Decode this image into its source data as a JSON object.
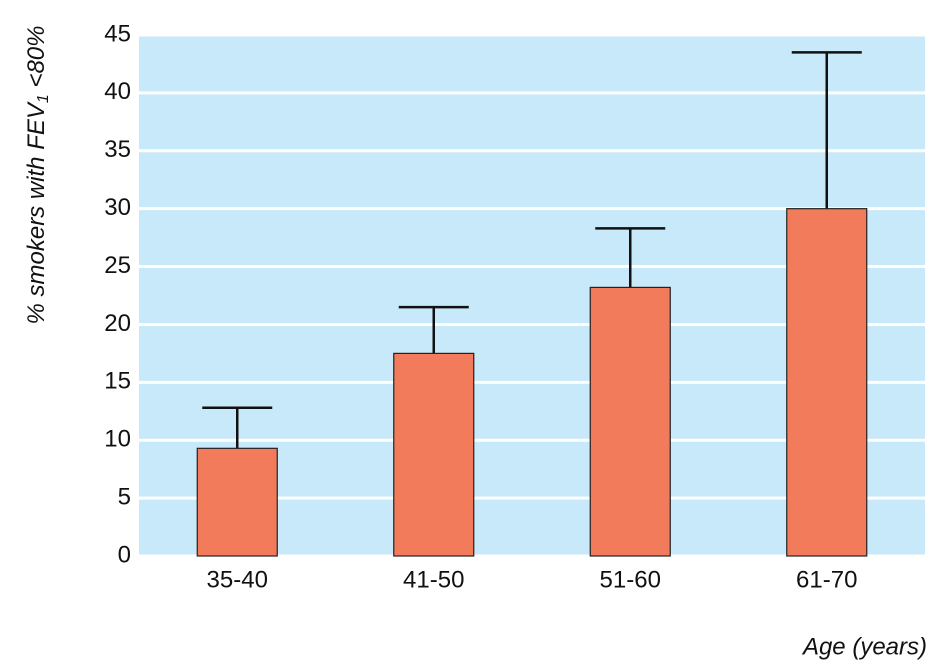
{
  "chart_data": {
    "type": "bar",
    "ylabel": {
      "text": "% smokers with FEV",
      "subscript": "1",
      "suffix": " <80%"
    },
    "xlabel": "Age (years)",
    "categories": [
      "35-40",
      "41-50",
      "51-60",
      "61-70"
    ],
    "values": [
      9.3,
      17.5,
      23.2,
      30.0
    ],
    "errors": [
      3.5,
      4.0,
      5.1,
      13.5
    ],
    "color": "#f27b5c",
    "background": "#c8e9f9",
    "ylim": [
      0,
      45
    ],
    "yticks": [
      0,
      5,
      10,
      15,
      20,
      25,
      30,
      35,
      40,
      45
    ],
    "grid": true
  }
}
